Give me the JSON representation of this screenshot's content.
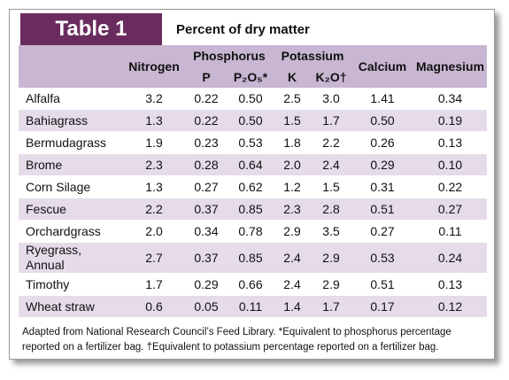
{
  "header": {
    "title": "Table 1",
    "subtitle": "Percent of dry matter"
  },
  "table": {
    "groups": [
      "Nitrogen",
      "Phosphorus",
      "Potassium",
      "Calcium",
      "Magnesium"
    ],
    "subheaders": [
      "P",
      "P₂O₅*",
      "K",
      "K₂O†"
    ],
    "rows": [
      [
        "Alfalfa",
        "3.2",
        "0.22",
        "0.50",
        "2.5",
        "3.0",
        "1.41",
        "0.34"
      ],
      [
        "Bahiagrass",
        "1.3",
        "0.22",
        "0.50",
        "1.5",
        "1.7",
        "0.50",
        "0.19"
      ],
      [
        "Bermudagrass",
        "1.9",
        "0.23",
        "0.53",
        "1.8",
        "2.2",
        "0.26",
        "0.13"
      ],
      [
        "Brome",
        "2.3",
        "0.28",
        "0.64",
        "2.0",
        "2.4",
        "0.29",
        "0.10"
      ],
      [
        "Corn Silage",
        "1.3",
        "0.27",
        "0.62",
        "1.2",
        "1.5",
        "0.31",
        "0.22"
      ],
      [
        "Fescue",
        "2.2",
        "0.37",
        "0.85",
        "2.3",
        "2.8",
        "0.51",
        "0.27"
      ],
      [
        "Orchardgrass",
        "2.0",
        "0.34",
        "0.78",
        "2.9",
        "3.5",
        "0.27",
        "0.11"
      ],
      [
        "Ryegrass, Annual",
        "2.7",
        "0.37",
        "0.85",
        "2.4",
        "2.9",
        "0.53",
        "0.24"
      ],
      [
        "Timothy",
        "1.7",
        "0.29",
        "0.66",
        "2.4",
        "2.9",
        "0.51",
        "0.13"
      ],
      [
        "Wheat straw",
        "0.6",
        "0.05",
        "0.11",
        "1.4",
        "1.7",
        "0.17",
        "0.12"
      ]
    ]
  },
  "footnote": "Adapted from National Research Council’s Feed Library. *Equivalent to phosphorus percentage reported on a fertilizer bag. †Equivalent to potassium percentage reported on a fertilizer bag."
}
